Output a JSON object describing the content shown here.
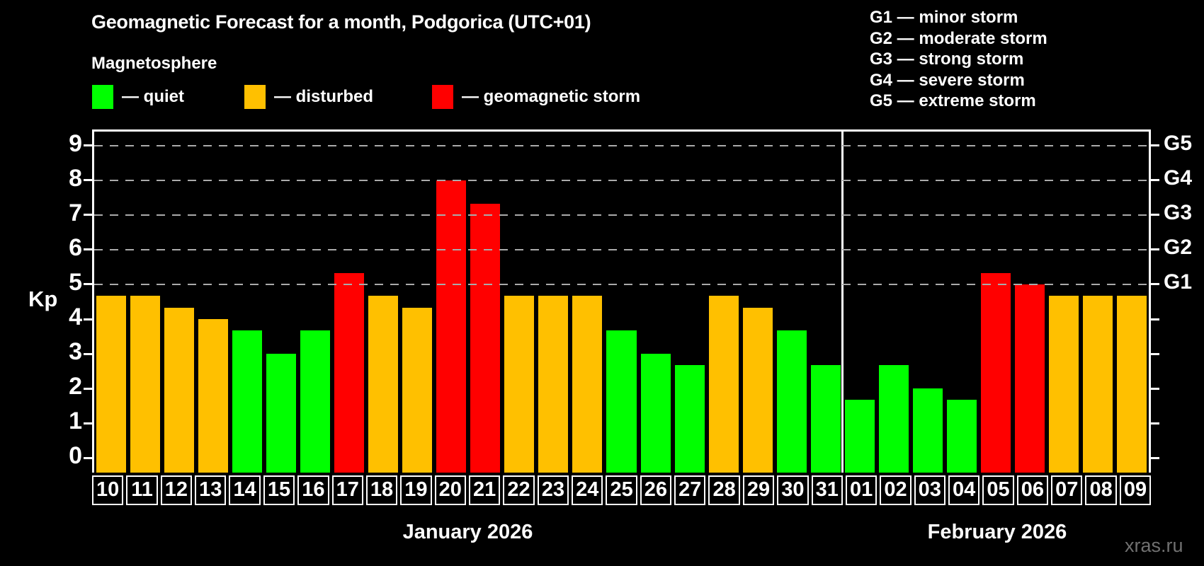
{
  "title": "Geomagnetic Forecast for a month, Podgorica (UTC+01)",
  "subtitle": "Magnetosphere",
  "watermark": "xras.ru",
  "colors": {
    "background": "#000000",
    "text": "#ffffff",
    "frame": "#ffffff",
    "gridline": "#aaaaaa",
    "watermark": "#707070",
    "quiet": "#00ff00",
    "disturbed": "#ffc000",
    "storm": "#ff0000"
  },
  "legend": {
    "items": [
      {
        "state": "quiet",
        "label": "— quiet"
      },
      {
        "state": "disturbed",
        "label": "— disturbed"
      },
      {
        "state": "storm",
        "label": "— geomagnetic storm"
      }
    ]
  },
  "g_legend": {
    "lines": [
      "G1 — minor storm",
      "G2 — moderate storm",
      "G3 — strong storm",
      "G4 — severe storm",
      "G5 — extreme storm"
    ]
  },
  "y_axis": {
    "label": "Kp",
    "ticks": [
      0,
      1,
      2,
      3,
      4,
      5,
      6,
      7,
      8,
      9
    ]
  },
  "right_axis": {
    "levels": [
      {
        "label": "G1",
        "kp": 5
      },
      {
        "label": "G2",
        "kp": 6
      },
      {
        "label": "G3",
        "kp": 7
      },
      {
        "label": "G4",
        "kp": 8
      },
      {
        "label": "G5",
        "kp": 9
      }
    ]
  },
  "chart_data": {
    "type": "bar",
    "title": "Geomagnetic Forecast for a month, Podgorica (UTC+01)",
    "subtitle": "Magnetosphere",
    "ylabel": "Kp",
    "ylim": [
      0,
      9
    ],
    "grid": "dashed horizontal at Kp 5-9 only",
    "legend_position": "top",
    "gridlines_at": [
      5,
      6,
      7,
      8,
      9
    ],
    "display_range": {
      "min": -0.42,
      "max": 9.4
    },
    "states_color": {
      "quiet": "#00ff00",
      "disturbed": "#ffc000",
      "storm": "#ff0000"
    },
    "months": [
      {
        "label": "January 2026",
        "days": [
          {
            "day": "10",
            "kp": 4.67,
            "state": "disturbed"
          },
          {
            "day": "11",
            "kp": 4.67,
            "state": "disturbed"
          },
          {
            "day": "12",
            "kp": 4.33,
            "state": "disturbed"
          },
          {
            "day": "13",
            "kp": 4.0,
            "state": "disturbed"
          },
          {
            "day": "14",
            "kp": 3.67,
            "state": "quiet"
          },
          {
            "day": "15",
            "kp": 3.0,
            "state": "quiet"
          },
          {
            "day": "16",
            "kp": 3.67,
            "state": "quiet"
          },
          {
            "day": "17",
            "kp": 5.33,
            "state": "storm"
          },
          {
            "day": "18",
            "kp": 4.67,
            "state": "disturbed"
          },
          {
            "day": "19",
            "kp": 4.33,
            "state": "disturbed"
          },
          {
            "day": "20",
            "kp": 8.0,
            "state": "storm"
          },
          {
            "day": "21",
            "kp": 7.33,
            "state": "storm"
          },
          {
            "day": "22",
            "kp": 4.67,
            "state": "disturbed"
          },
          {
            "day": "23",
            "kp": 4.67,
            "state": "disturbed"
          },
          {
            "day": "24",
            "kp": 4.67,
            "state": "disturbed"
          },
          {
            "day": "25",
            "kp": 3.67,
            "state": "quiet"
          },
          {
            "day": "26",
            "kp": 3.0,
            "state": "quiet"
          },
          {
            "day": "27",
            "kp": 2.67,
            "state": "quiet"
          },
          {
            "day": "28",
            "kp": 4.67,
            "state": "disturbed"
          },
          {
            "day": "29",
            "kp": 4.33,
            "state": "disturbed"
          },
          {
            "day": "30",
            "kp": 3.67,
            "state": "quiet"
          },
          {
            "day": "31",
            "kp": 2.67,
            "state": "quiet"
          }
        ]
      },
      {
        "label": "February 2026",
        "days": [
          {
            "day": "01",
            "kp": 1.67,
            "state": "quiet"
          },
          {
            "day": "02",
            "kp": 2.67,
            "state": "quiet"
          },
          {
            "day": "03",
            "kp": 2.0,
            "state": "quiet"
          },
          {
            "day": "04",
            "kp": 1.67,
            "state": "quiet"
          },
          {
            "day": "05",
            "kp": 5.33,
            "state": "storm"
          },
          {
            "day": "06",
            "kp": 5.0,
            "state": "storm"
          },
          {
            "day": "07",
            "kp": 4.67,
            "state": "disturbed"
          },
          {
            "day": "08",
            "kp": 4.67,
            "state": "disturbed"
          },
          {
            "day": "09",
            "kp": 4.67,
            "state": "disturbed"
          }
        ]
      }
    ]
  }
}
